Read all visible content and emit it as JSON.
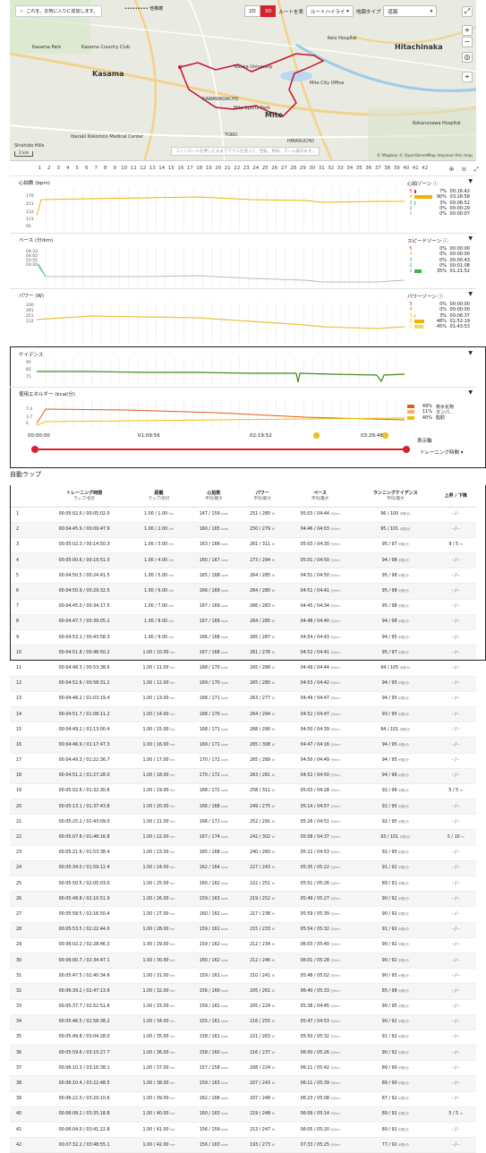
{
  "map": {
    "favorite_label": "これを、お気に入りに追加します。",
    "course_select": "••••••••• 他推薦",
    "view_2d": "2D",
    "view_3d": "3D",
    "route_show": "ルートを表",
    "route_highlight": "ルートハイライ",
    "map_type_label": "地図タイプ",
    "map_type_value": "道路",
    "hint": "コントロールを押したままでマウスを使って、回転、傾斜、ズーム操作ます。",
    "attribution": "© Mapbox © OpenStreetMap Improve this map",
    "scale": "2 km",
    "places": [
      {
        "name": "Kasama Park",
        "x": 25,
        "y": 50,
        "big": false
      },
      {
        "name": "Kasama Country Club",
        "x": 80,
        "y": 50,
        "big": false
      },
      {
        "name": "Kasama",
        "x": 92,
        "y": 78,
        "big": true
      },
      {
        "name": "Tokiwa University",
        "x": 250,
        "y": 72,
        "big": false
      },
      {
        "name": "KAWAWADACHO",
        "x": 215,
        "y": 108,
        "big": false
      },
      {
        "name": "Mito Sports Park",
        "x": 250,
        "y": 118,
        "big": false
      },
      {
        "name": "Mito",
        "x": 285,
        "y": 124,
        "big": true
      },
      {
        "name": "Mito City Office",
        "x": 335,
        "y": 90,
        "big": false
      },
      {
        "name": "Ibaraki Kokorono Medical Center",
        "x": 68,
        "y": 150,
        "big": false
      },
      {
        "name": "Shishido Hills",
        "x": 5,
        "y": 160,
        "big": false
      },
      {
        "name": "Hitachinaka",
        "x": 430,
        "y": 48,
        "big": true
      },
      {
        "name": "Keio Hospital",
        "x": 355,
        "y": 40,
        "big": false
      },
      {
        "name": "Kokaruizawa Hospital",
        "x": 450,
        "y": 135,
        "big": false
      },
      {
        "name": "HIRASUCHO",
        "x": 310,
        "y": 155,
        "big": false
      },
      {
        "name": "TOKO",
        "x": 240,
        "y": 148,
        "big": false
      }
    ]
  },
  "lap_numbers": [
    "1",
    "2",
    "3",
    "4",
    "5",
    "6",
    "7",
    "8",
    "9",
    "10",
    "11",
    "12",
    "13",
    "14",
    "15",
    "16",
    "17",
    "18",
    "19",
    "20",
    "21",
    "22",
    "23",
    "24",
    "25",
    "26",
    "27",
    "28",
    "29",
    "30",
    "31",
    "32",
    "33",
    "34",
    "35",
    "36",
    "37",
    "38",
    "39",
    "40",
    "41",
    "42"
  ],
  "charts": {
    "hr": {
      "title": "心拍数 (bpm)",
      "ticks": [
        "170",
        "151",
        "133",
        "113",
        "95"
      ],
      "zone_title": "心拍ゾーン ⓘ",
      "zones": [
        {
          "n": "5",
          "pct": "7%",
          "time": "00:16:42",
          "color": "#e0314b",
          "frac": 0.07
        },
        {
          "n": "4",
          "pct": "90%",
          "time": "03:28:58",
          "color": "#f0b400",
          "frac": 0.9
        },
        {
          "n": "3",
          "pct": "3%",
          "time": "00:06:52",
          "color": "#3bb54a",
          "frac": 0.03
        },
        {
          "n": "2",
          "pct": "0%",
          "time": "00:00:29",
          "color": "#3b8ed6",
          "frac": 0
        },
        {
          "n": "1",
          "pct": "0%",
          "time": "00:00:07",
          "color": "#9ab",
          "frac": 0
        }
      ]
    },
    "pace": {
      "title": "ペース (分/km)",
      "ticks": [
        "04:33",
        "04:05",
        "03:55",
        "03:20"
      ],
      "zone_title": "スピードゾーン ⓘ",
      "zones": [
        {
          "n": "5",
          "pct": "0%",
          "time": "00:00:00",
          "color": "#e0314b",
          "frac": 0
        },
        {
          "n": "4",
          "pct": "0%",
          "time": "00:00:00",
          "color": "#f0b400",
          "frac": 0
        },
        {
          "n": "3",
          "pct": "0%",
          "time": "00:00:43",
          "color": "#3bb54a",
          "frac": 0
        },
        {
          "n": "2",
          "pct": "0%",
          "time": "00:01:08",
          "color": "#3b8ed6",
          "frac": 0
        },
        {
          "n": "1",
          "pct": "35%",
          "time": "01:21:52",
          "color": "#3bb54a",
          "frac": 0.35
        }
      ]
    },
    "power": {
      "title": "パワー (W)",
      "ticks": [
        "330",
        "291",
        "251",
        "212"
      ],
      "zone_title": "パワーゾーン ⓘ",
      "zones": [
        {
          "n": "5",
          "pct": "0%",
          "time": "00:00:00",
          "color": "#e0314b",
          "frac": 0
        },
        {
          "n": "4",
          "pct": "0%",
          "time": "00:00:00",
          "color": "#f08030",
          "frac": 0
        },
        {
          "n": "3",
          "pct": "3%",
          "time": "00:06:37",
          "color": "#f0b400",
          "frac": 0.03
        },
        {
          "n": "2",
          "pct": "48%",
          "time": "01:52:19",
          "color": "#f0b400",
          "frac": 0.48
        },
        {
          "n": "1",
          "pct": "45%",
          "time": "01:43:53",
          "color": "#f5d560",
          "frac": 0.45
        }
      ]
    },
    "cadence": {
      "title": "ケイデンス",
      "ticks": [
        "95",
        "85",
        "75"
      ]
    },
    "energy": {
      "title": "使用エネルギー (kcal/分)",
      "ticks": [
        "7.4",
        "3.7",
        "0"
      ],
      "zones": [
        {
          "pct": "49%",
          "label": "炭水化物",
          "color": "#e05a20",
          "frac": 0.49
        },
        {
          "pct": "11%",
          "label": "タンパ..",
          "color": "#f5b060",
          "frac": 0.11
        },
        {
          "pct": "40%",
          "label": "脂肪",
          "color": "#f0c000",
          "frac": 0.4
        }
      ]
    }
  },
  "timeline": {
    "ticks": [
      "00:00:00",
      "01:09:56",
      "02:19:52",
      "03:29:48"
    ],
    "display_label": "表示軸",
    "mode": "トレーニング時間"
  },
  "auto_lap": {
    "title": "自動ラップ",
    "headers": [
      {
        "t": "",
        "s": ""
      },
      {
        "t": "トレーニング時間",
        "s": "ラップ/合計"
      },
      {
        "t": "距離",
        "s": "ラップ/合計"
      },
      {
        "t": "心拍数",
        "s": "平均/最大"
      },
      {
        "t": "パワー",
        "s": "平均/最大"
      },
      {
        "t": "ペース",
        "s": "平均/最大"
      },
      {
        "t": "ランニングケイデンス",
        "s": "平均/最大"
      },
      {
        "t": "上昇 / 下降",
        "s": ""
      }
    ],
    "rows": [
      [
        "1",
        "00:05:02.0 / 00:05:02.0",
        "1.00 / 1.00",
        "147 / 159",
        "251 / 280",
        "05:03 / 04:44",
        "96 / 100",
        "- / -"
      ],
      [
        "2",
        "00:04:45.9 / 00:09:47.9",
        "1.00 / 2.00",
        "160 / 165",
        "250 / 279",
        "04:46 / 04:03",
        "95 / 101",
        "- / -"
      ],
      [
        "3",
        "00:05:02.3 / 00:14:50.3",
        "1.00 / 3.00",
        "163 / 166",
        "261 / 311",
        "05:03 / 04:30",
        "95 / 97",
        "9 / 5"
      ],
      [
        "4",
        "00:05:00.6 / 00:19:51.0",
        "1.00 / 4.00",
        "160 / 167",
        "273 / 294",
        "05:01 / 04:50",
        "94 / 98",
        "- / -"
      ],
      [
        "5",
        "00:04:50.5 / 00:24:41.5",
        "1.00 / 5.00",
        "165 / 168",
        "264 / 285",
        "04:51 / 04:50",
        "95 / 98",
        "- / -"
      ],
      [
        "6",
        "00:04:50.9 / 00:29:32.5",
        "1.00 / 6.00",
        "166 / 169",
        "264 / 280",
        "04:51 / 04:41",
        "95 / 98",
        "- / -"
      ],
      [
        "7",
        "00:04:45.0 / 00:34:17.5",
        "1.00 / 7.00",
        "167 / 169",
        "266 / 283",
        "04:45 / 04:34",
        "95 / 98",
        "- / -"
      ],
      [
        "8",
        "00:04:47.7 / 00:39:05.2",
        "1.00 / 8.00",
        "167 / 169",
        "264 / 285",
        "04:48 / 04:40",
        "94 / 98",
        "- / -"
      ],
      [
        "9",
        "00:04:53.1 / 00:43:58.3",
        "1.00 / 9.00",
        "166 / 168",
        "265 / 287",
        "04:54 / 04:43",
        "94 / 95",
        "- / -"
      ],
      [
        "10",
        "00:04:51.8 / 00:48:50.2",
        "1.00 / 10.00",
        "167 / 168",
        "261 / 276",
        "04:52 / 04:41",
        "95 / 97",
        "- / -"
      ],
      [
        "11",
        "00:04:48.3 / 00:53:38.6",
        "1.00 / 11.00",
        "168 / 170",
        "265 / 288",
        "04:49 / 04:44",
        "94 / 105",
        "- / -"
      ],
      [
        "12",
        "00:04:52.6 / 00:58:31.2",
        "1.00 / 12.00",
        "169 / 170",
        "265 / 280",
        "04:53 / 04:42",
        "94 / 95",
        "- / -"
      ],
      [
        "13",
        "00:04:48.2 / 01:03:19.4",
        "1.00 / 13.00",
        "168 / 171",
        "263 / 277",
        "04:49 / 04:47",
        "94 / 95",
        "- / -"
      ],
      [
        "14",
        "00:04:51.7 / 01:08:11.2",
        "1.00 / 14.00",
        "168 / 170",
        "264 / 294",
        "04:52 / 04:47",
        "93 / 95",
        "- / -"
      ],
      [
        "15",
        "00:04:49.2 / 01:13:00.4",
        "1.00 / 15.00",
        "168 / 171",
        "268 / 290",
        "04:50 / 04:39",
        "94 / 101",
        "- / -"
      ],
      [
        "16",
        "00:04:46.9 / 01:17:47.3",
        "1.00 / 16.00",
        "169 / 171",
        "265 / 308",
        "04:47 / 04:16",
        "94 / 95",
        "- / -"
      ],
      [
        "17",
        "00:04:49.3 / 01:22:36.7",
        "1.00 / 17.00",
        "170 / 172",
        "265 / 289",
        "04:50 / 04:49",
        "94 / 95",
        "- / -"
      ],
      [
        "18",
        "00:04:51.2 / 01:27:28.0",
        "1.00 / 18.00",
        "170 / 172",
        "263 / 281",
        "04:52 / 04:50",
        "94 / 96",
        "- / -"
      ],
      [
        "19",
        "00:05:02.6 / 01:32:30.6",
        "1.00 / 19.00",
        "168 / 172",
        "258 / 311",
        "05:03 / 04:28",
        "92 / 96",
        "5 / 5"
      ],
      [
        "20",
        "00:05:13.1 / 01:37:43.8",
        "1.00 / 20.00",
        "166 / 168",
        "249 / 275",
        "05:14 / 04:57",
        "92 / 95",
        "- / -"
      ],
      [
        "21",
        "00:05:25.2 / 01:43:09.0",
        "1.00 / 21.00",
        "166 / 171",
        "252 / 291",
        "05:26 / 04:51",
        "92 / 95",
        "- / -"
      ],
      [
        "22",
        "00:05:07.8 / 01:48:16.8",
        "1.00 / 22.00",
        "167 / 174",
        "242 / 302",
        "05:08 / 04:37",
        "93 / 101",
        "5 / 10"
      ],
      [
        "23",
        "00:05:21.6 / 01:53:38.4",
        "1.00 / 23.00",
        "165 / 168",
        "240 / 260",
        "05:22 / 04:53",
        "92 / 95",
        "- / -"
      ],
      [
        "24",
        "00:05:34.0 / 01:59:12.4",
        "1.00 / 24.00",
        "162 / 164",
        "227 / 243",
        "05:35 / 05:22",
        "91 / 92",
        "- / -"
      ],
      [
        "25",
        "00:05:50.5 / 02:05:03.0",
        "1.00 / 25.00",
        "160 / 162",
        "222 / 251",
        "05:51 / 05:26",
        "89 / 91",
        "- / -"
      ],
      [
        "26",
        "00:05:48.8 / 02:10:51.9",
        "1.00 / 26.00",
        "159 / 163",
        "219 / 252",
        "05:49 / 05:27",
        "90 / 92",
        "- / -"
      ],
      [
        "27",
        "00:05:58.5 / 02:16:50.4",
        "1.00 / 27.00",
        "160 / 162",
        "217 / 238",
        "05:59 / 05:39",
        "90 / 92",
        "- / -"
      ],
      [
        "28",
        "00:05:53.5 / 02:22:44.0",
        "1.00 / 28.00",
        "159 / 161",
        "215 / 233",
        "05:54 / 05:32",
        "91 / 92",
        "- / -"
      ],
      [
        "29",
        "00:06:02.2 / 02:28:46.3",
        "1.00 / 29.00",
        "159 / 162",
        "212 / 234",
        "06:03 / 05:40",
        "90 / 92",
        "- / -"
      ],
      [
        "30",
        "00:06:00.7 / 02:34:47.1",
        "1.00 / 30.00",
        "160 / 162",
        "212 / 246",
        "06:01 / 05:28",
        "90 / 92",
        "- / -"
      ],
      [
        "31",
        "00:05:47.5 / 02:40:34.6",
        "1.00 / 31.00",
        "159 / 161",
        "210 / 241",
        "05:48 / 05:02",
        "90 / 95",
        "- / -"
      ],
      [
        "32",
        "00:06:39.2 / 02:47:13.9",
        "1.00 / 32.00",
        "156 / 160",
        "205 / 261",
        "06:40 / 05:33",
        "85 / 98",
        "- / -"
      ],
      [
        "33",
        "00:05:37.7 / 02:52:51.6",
        "1.00 / 33.00",
        "159 / 162",
        "205 / 229",
        "05:38 / 04:45",
        "90 / 95",
        "- / -"
      ],
      [
        "34",
        "00:05:46.5 / 02:58:38.2",
        "1.00 / 34.00",
        "155 / 161",
        "216 / 255",
        "05:47 / 04:53",
        "90 / 92",
        "- / -"
      ],
      [
        "35",
        "00:05:49.8 / 03:04:28.0",
        "1.00 / 35.00",
        "158 / 161",
        "221 / 263",
        "05:50 / 05:32",
        "91 / 92",
        "- / -"
      ],
      [
        "36",
        "00:05:59.6 / 03:10:27.7",
        "1.00 / 36.00",
        "158 / 160",
        "216 / 237",
        "06:00 / 05:26",
        "90 / 92",
        "- / -"
      ],
      [
        "37",
        "00:06:10.3 / 03:16:38.1",
        "1.00 / 37.00",
        "157 / 158",
        "208 / 224",
        "06:11 / 05:42",
        "89 / 90",
        "- / -"
      ],
      [
        "38",
        "00:06:10.4 / 03:22:48.5",
        "1.00 / 38.00",
        "159 / 163",
        "207 / 243",
        "06:11 / 05:39",
        "89 / 90",
        "- / -"
      ],
      [
        "39",
        "00:06:22.0 / 03:29:10.6",
        "1.00 / 39.00",
        "162 / 166",
        "207 / 248",
        "06:23 / 05:08",
        "87 / 92",
        "- / -"
      ],
      [
        "40",
        "00:06:08.2 / 03:35:18.8",
        "1.00 / 40.00",
        "160 / 163",
        "219 / 248",
        "06:09 / 05:14",
        "89 / 92",
        "5 / 5"
      ],
      [
        "41",
        "00:06:04.0 / 03:41:22.8",
        "1.00 / 41.00",
        "156 / 159",
        "213 / 247",
        "06:05 / 05:20",
        "89 / 92",
        "- / -"
      ],
      [
        "42",
        "00:07:32.2 / 03:48:55.1",
        "1.00 / 42.00",
        "156 / 163",
        "193 / 273",
        "07:33 / 05:25",
        "77 / 92",
        "- / -"
      ]
    ],
    "units": {
      "dist": "km",
      "hr": "bpm",
      "power": "W",
      "pace": "分/km",
      "cad": "歩数/分",
      "elev": "m"
    }
  }
}
